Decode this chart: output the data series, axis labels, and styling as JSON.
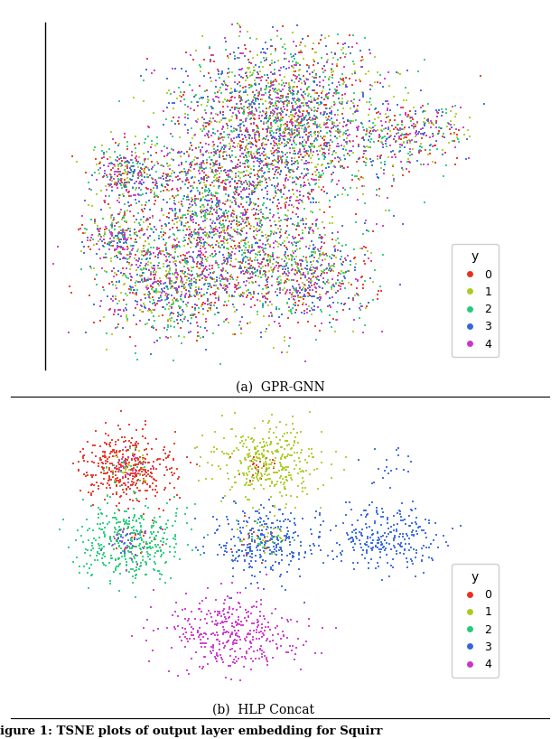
{
  "fig_width": 6.2,
  "fig_height": 8.18,
  "dpi": 100,
  "n_classes": 5,
  "class_colors": [
    "#e83020",
    "#aacc22",
    "#22cc77",
    "#3366dd",
    "#cc33cc"
  ],
  "class_labels": [
    "0",
    "1",
    "2",
    "3",
    "4"
  ],
  "legend_title": "y",
  "subplot_a_title": "(a)  GPR-GNN",
  "subplot_b_title": "(b)  HLP Concat",
  "caption": "igure 1: TSNE plots of output layer embedding for Squirr",
  "marker_size": 4,
  "alpha": 0.9
}
